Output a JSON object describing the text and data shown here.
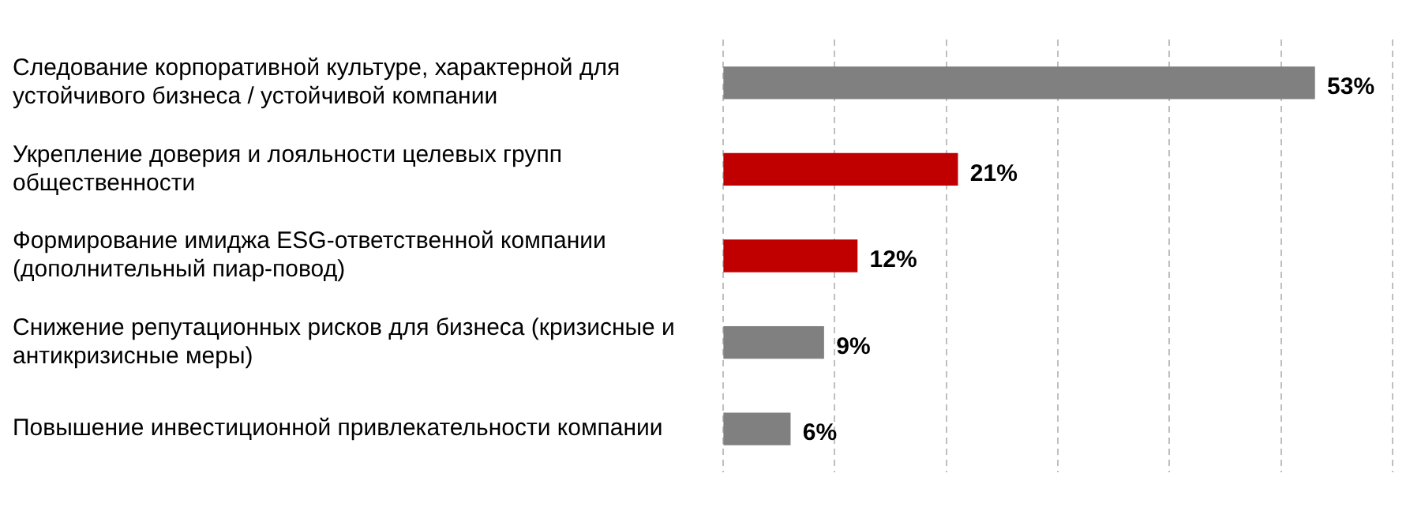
{
  "chart_data": {
    "type": "bar",
    "orientation": "horizontal",
    "categories": [
      "Следование корпоративной культуре, характерной для устойчивого бизнеса / устойчивой компании",
      "Укрепление доверия и лояльности целевых групп общественности",
      "Формирование имиджа ESG-ответственной компании (дополнительный пиар-повод)",
      "Снижение репутационных рисков для бизнеса (кризисные и антикризисные меры)",
      "Повышение инвестиционной привлекательности компании"
    ],
    "values": [
      53,
      21,
      12,
      9,
      6
    ],
    "colors": [
      "#808080",
      "#c00000",
      "#c00000",
      "#808080",
      "#808080"
    ],
    "value_labels": [
      "53%",
      "21%",
      "12%",
      "9%",
      "6%"
    ],
    "xlim": [
      0,
      60
    ],
    "xticks": [
      {
        "value": 0,
        "label": null
      },
      {
        "value": 10,
        "label": null
      },
      {
        "value": 20,
        "label": null
      },
      {
        "value": 30,
        "label": null
      },
      {
        "value": 40,
        "label": null
      },
      {
        "value": 50,
        "label": null
      },
      {
        "value": 60,
        "label": null
      }
    ],
    "grid": "x",
    "tick_labels": "y",
    "legend": false
  }
}
